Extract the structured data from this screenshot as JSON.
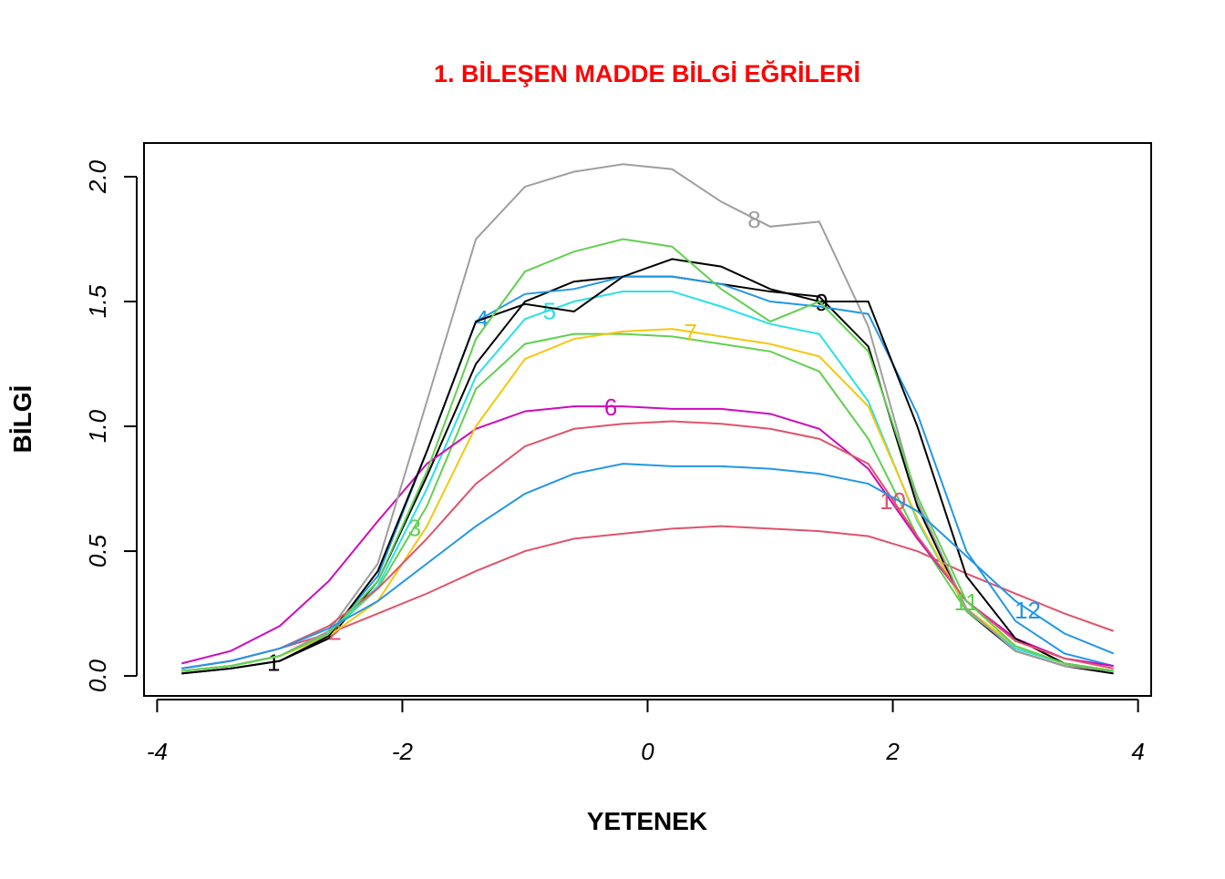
{
  "chart_data": {
    "type": "line",
    "title": "1. BİLEŞEN MADDE BİLGİ  EĞRİLERİ",
    "xlabel": "YETENEK",
    "ylabel": "BİLGİ",
    "x": [
      -3.8,
      -3.4,
      -3.0,
      -2.6,
      -2.2,
      -1.8,
      -1.4,
      -1.0,
      -0.6,
      -0.2,
      0.2,
      0.6,
      1.0,
      1.4,
      1.8,
      2.2,
      2.6,
      3.0,
      3.4,
      3.8
    ],
    "xlim": [
      -4.107,
      4.107
    ],
    "xticks": [
      -4,
      -2,
      0,
      2,
      4
    ],
    "ylim": [
      -0.08,
      2.135
    ],
    "yticks": [
      {
        "value": 0,
        "label": "0.0"
      },
      {
        "value": 0.5,
        "label": "0.5"
      },
      {
        "value": 1,
        "label": "1.0"
      },
      {
        "value": 1.5,
        "label": "1.5"
      },
      {
        "value": 2,
        "label": "2.0"
      }
    ],
    "series": [
      {
        "name": "1",
        "color": "#000000",
        "values": [
          0.01,
          0.03,
          0.06,
          0.15,
          0.38,
          0.8,
          1.25,
          1.5,
          1.58,
          1.6,
          1.6,
          1.57,
          1.54,
          1.52,
          1.32,
          0.68,
          0.26,
          0.1,
          0.04,
          0.01
        ]
      },
      {
        "name": "2",
        "color": "#DF536B",
        "values": [
          0.03,
          0.06,
          0.11,
          0.17,
          0.25,
          0.33,
          0.42,
          0.5,
          0.55,
          0.57,
          0.59,
          0.6,
          0.59,
          0.58,
          0.56,
          0.5,
          0.41,
          0.33,
          0.25,
          0.18
        ]
      },
      {
        "name": "3",
        "color": "#61D04F",
        "values": [
          0.02,
          0.04,
          0.08,
          0.17,
          0.35,
          0.68,
          1.15,
          1.33,
          1.37,
          1.37,
          1.36,
          1.33,
          1.3,
          1.22,
          0.95,
          0.56,
          0.26,
          0.11,
          0.05,
          0.02
        ]
      },
      {
        "name": "4",
        "color": "#2297E6",
        "values": [
          0.02,
          0.04,
          0.08,
          0.17,
          0.4,
          0.9,
          1.42,
          1.53,
          1.55,
          1.6,
          1.6,
          1.57,
          1.5,
          1.48,
          1.45,
          1.05,
          0.5,
          0.22,
          0.09,
          0.04
        ]
      },
      {
        "name": "5",
        "color": "#28E2E5",
        "values": [
          0.02,
          0.04,
          0.08,
          0.17,
          0.36,
          0.75,
          1.2,
          1.43,
          1.5,
          1.54,
          1.54,
          1.48,
          1.41,
          1.37,
          1.1,
          0.62,
          0.27,
          0.11,
          0.05,
          0.02
        ]
      },
      {
        "name": "6",
        "color": "#CD0BBC",
        "values": [
          0.05,
          0.1,
          0.2,
          0.38,
          0.62,
          0.85,
          0.99,
          1.06,
          1.08,
          1.08,
          1.07,
          1.07,
          1.05,
          0.99,
          0.83,
          0.55,
          0.3,
          0.15,
          0.07,
          0.04
        ]
      },
      {
        "name": "7",
        "color": "#F5C710",
        "values": [
          0.02,
          0.04,
          0.08,
          0.16,
          0.3,
          0.6,
          1.0,
          1.27,
          1.35,
          1.38,
          1.39,
          1.36,
          1.33,
          1.28,
          1.08,
          0.63,
          0.27,
          0.12,
          0.05,
          0.02
        ]
      },
      {
        "name": "8",
        "color": "#9E9E9E",
        "values": [
          0.02,
          0.04,
          0.08,
          0.18,
          0.45,
          1.1,
          1.75,
          1.96,
          2.02,
          2.05,
          2.03,
          1.9,
          1.8,
          1.82,
          1.4,
          0.7,
          0.27,
          0.1,
          0.04,
          0.02
        ]
      },
      {
        "name": "9",
        "color": "#000000",
        "values": [
          0.01,
          0.03,
          0.06,
          0.16,
          0.42,
          0.9,
          1.42,
          1.49,
          1.46,
          1.6,
          1.67,
          1.64,
          1.55,
          1.5,
          1.5,
          1.0,
          0.4,
          0.15,
          0.05,
          0.02
        ]
      },
      {
        "name": "10",
        "color": "#DF536B",
        "values": [
          0.03,
          0.06,
          0.11,
          0.2,
          0.35,
          0.55,
          0.77,
          0.92,
          0.99,
          1.01,
          1.02,
          1.01,
          0.99,
          0.95,
          0.85,
          0.56,
          0.3,
          0.14,
          0.07,
          0.03
        ]
      },
      {
        "name": "11",
        "color": "#61D04F",
        "values": [
          0.02,
          0.04,
          0.08,
          0.17,
          0.38,
          0.82,
          1.35,
          1.62,
          1.7,
          1.75,
          1.72,
          1.55,
          1.42,
          1.5,
          1.3,
          0.72,
          0.3,
          0.12,
          0.05,
          0.02
        ]
      },
      {
        "name": "12",
        "color": "#2297E6",
        "values": [
          0.03,
          0.06,
          0.11,
          0.19,
          0.3,
          0.45,
          0.6,
          0.73,
          0.81,
          0.85,
          0.84,
          0.84,
          0.83,
          0.81,
          0.77,
          0.66,
          0.48,
          0.3,
          0.17,
          0.09
        ]
      }
    ]
  }
}
